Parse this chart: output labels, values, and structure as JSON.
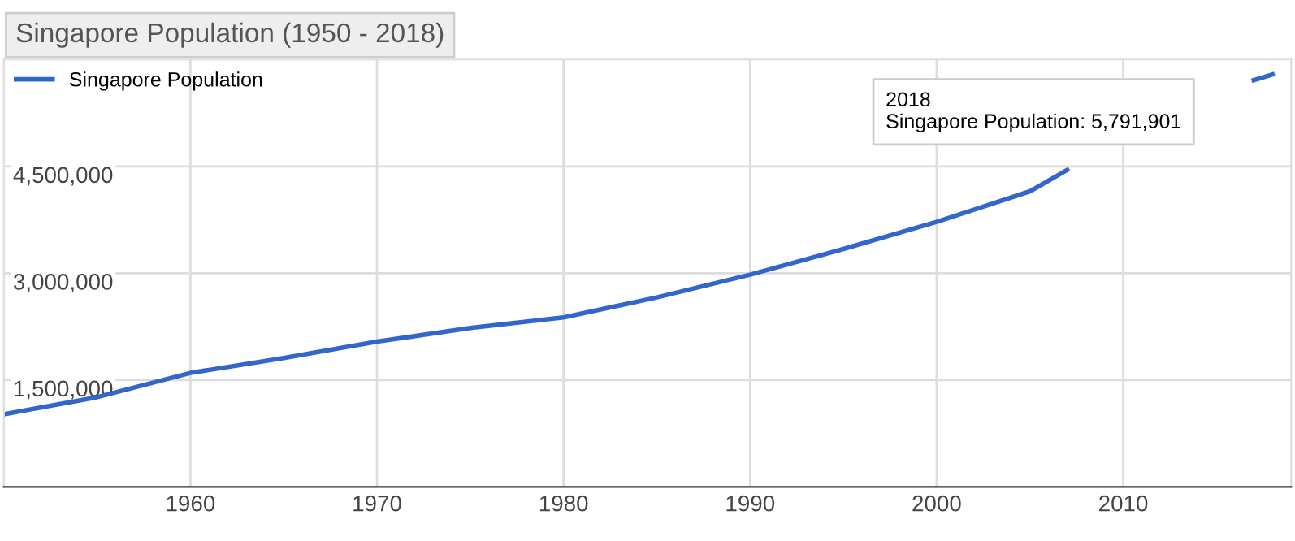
{
  "chart_data": {
    "type": "line",
    "title": "Singapore Population (1950 - 2018)",
    "series": [
      {
        "name": "Singapore Population",
        "color": "#3366cc",
        "x": [
          1950,
          1955,
          1960,
          1965,
          1970,
          1975,
          1980,
          1985,
          1990,
          1995,
          2000,
          2005,
          2007,
          2012,
          2017,
          2018
        ],
        "values": [
          1020000,
          1260000,
          1600000,
          1810000,
          2040000,
          2230000,
          2380000,
          2660000,
          2980000,
          3340000,
          3720000,
          4150000,
          4450000,
          null,
          5710000,
          5790000
        ]
      }
    ],
    "xlim": [
      1950,
      2019
    ],
    "xticks": [
      1960,
      1970,
      1980,
      1990,
      2000,
      2010
    ],
    "ylim": [
      0,
      6000000
    ],
    "yticks": [
      {
        "value": 1500000,
        "label": "1,500,000"
      },
      {
        "value": 3000000,
        "label": "3,000,000"
      },
      {
        "value": 4500000,
        "label": "4,500,000"
      }
    ],
    "grid": true,
    "legend": "top left",
    "marker": "none",
    "line_style": "solid",
    "annotations": [
      "2018\nSingapore Population: 5,791,901"
    ]
  }
}
